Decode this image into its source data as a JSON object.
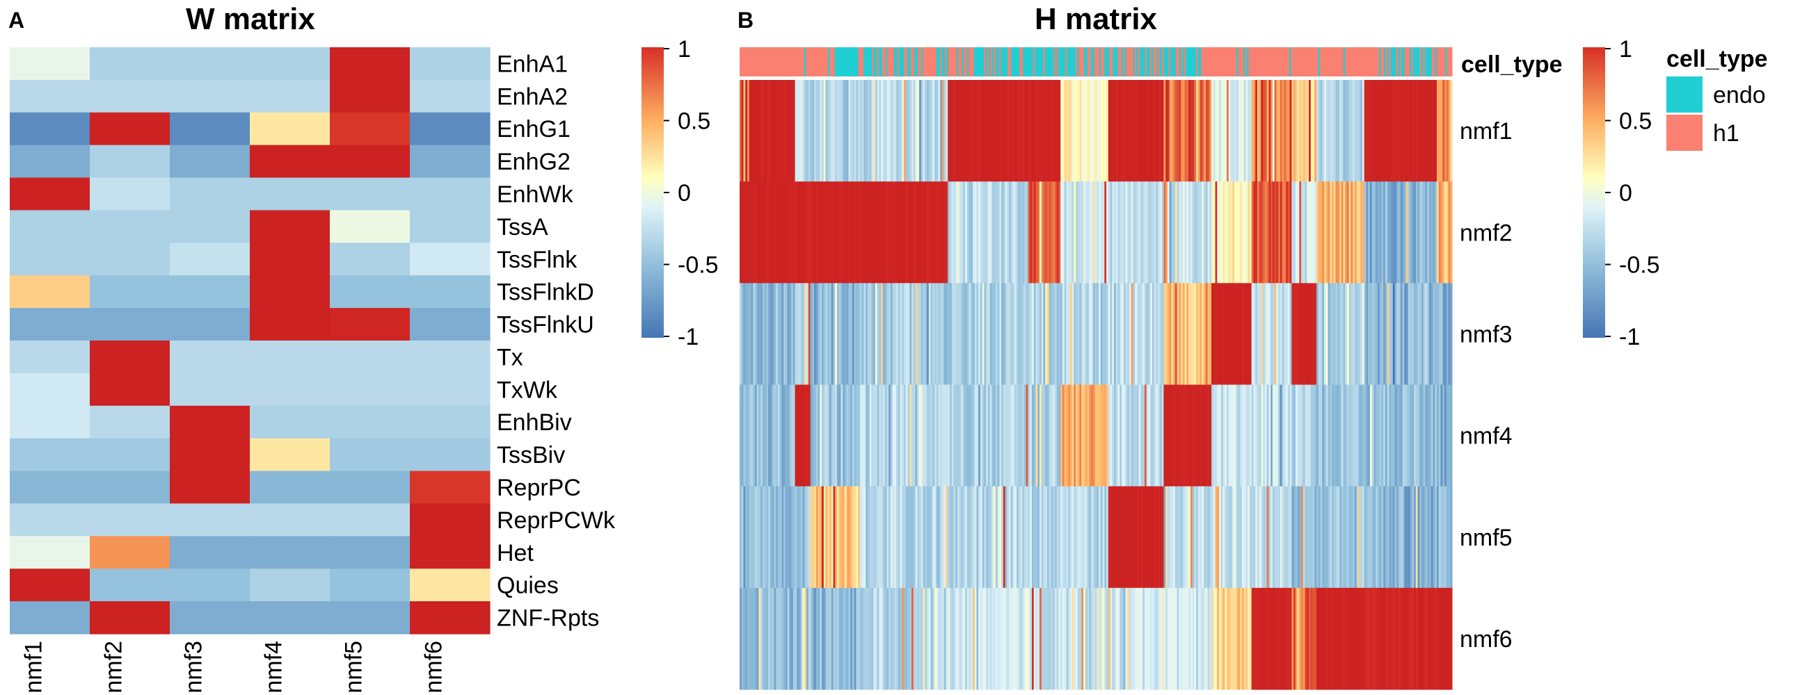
{
  "panel_a": {
    "letter": "A",
    "title": "W matrix",
    "chart_data": {
      "type": "heatmap",
      "title": "W matrix",
      "columns": [
        "nmf1",
        "nmf2",
        "nmf3",
        "nmf4",
        "nmf5",
        "nmf6"
      ],
      "rows": [
        "EnhA1",
        "EnhA2",
        "EnhG1",
        "EnhG2",
        "EnhWk",
        "TssA",
        "TssFlnk",
        "TssFlnkD",
        "TssFlnkU",
        "Tx",
        "TxWk",
        "EnhBiv",
        "TssBiv",
        "ReprPC",
        "ReprPCWk",
        "Het",
        "Quies",
        "ZNF-Rpts"
      ],
      "values": [
        [
          -0.25,
          -0.55,
          -0.55,
          -0.55,
          1.0,
          -0.55
        ],
        [
          -0.5,
          -0.5,
          -0.5,
          -0.5,
          1.0,
          -0.5
        ],
        [
          -0.9,
          1.0,
          -0.9,
          0.1,
          0.65,
          -0.9
        ],
        [
          -0.75,
          -0.55,
          -0.75,
          1.0,
          1.0,
          -0.75
        ],
        [
          1.0,
          -0.45,
          -0.55,
          -0.55,
          -0.55,
          -0.55
        ],
        [
          -0.55,
          -0.55,
          -0.55,
          1.0,
          -0.2,
          -0.55
        ],
        [
          -0.55,
          -0.55,
          -0.45,
          1.0,
          -0.55,
          -0.4
        ],
        [
          0.2,
          -0.65,
          -0.65,
          1.0,
          -0.65,
          -0.65
        ],
        [
          -0.75,
          -0.75,
          -0.75,
          1.0,
          0.9,
          -0.75
        ],
        [
          -0.5,
          1.0,
          -0.5,
          -0.5,
          -0.5,
          -0.5
        ],
        [
          -0.4,
          1.0,
          -0.5,
          -0.5,
          -0.5,
          -0.5
        ],
        [
          -0.4,
          -0.5,
          1.0,
          -0.55,
          -0.55,
          -0.55
        ],
        [
          -0.6,
          -0.6,
          1.0,
          0.1,
          -0.6,
          -0.6
        ],
        [
          -0.7,
          -0.7,
          1.0,
          -0.7,
          -0.7,
          0.65
        ],
        [
          -0.5,
          -0.5,
          -0.5,
          -0.5,
          -0.5,
          1.0
        ],
        [
          -0.25,
          0.4,
          -0.75,
          -0.75,
          -0.75,
          1.0
        ],
        [
          1.0,
          -0.65,
          -0.65,
          -0.55,
          -0.65,
          0.1
        ],
        [
          -0.75,
          1.0,
          -0.75,
          -0.75,
          -0.75,
          1.0
        ]
      ],
      "color_scale": {
        "min": -1,
        "max": 1,
        "colors": [
          "#4575b4",
          "#91bfdb",
          "#e0f3f8",
          "#ffffbf",
          "#fdae61",
          "#d73027",
          "#cc2222"
        ]
      },
      "legend": {
        "ticks": [
          "1",
          "0.5",
          "0",
          "-0.5",
          "-1"
        ],
        "tick_values": [
          1,
          0.5,
          0,
          -0.5,
          -1
        ],
        "position": "right"
      }
    }
  },
  "panel_b": {
    "letter": "B",
    "title": "H matrix",
    "annotation_label": "cell_type",
    "chart_data": {
      "type": "heatmap",
      "title": "H matrix",
      "rows": [
        "nmf1",
        "nmf2",
        "nmf3",
        "nmf4",
        "nmf5",
        "nmf6"
      ],
      "segments": [
        {
          "frac": 0.012,
          "v": [
            0.3,
            1.0,
            -0.65,
            -0.7,
            -0.7,
            -0.65
          ]
        },
        {
          "frac": 0.058,
          "v": [
            1.0,
            1.0,
            -0.65,
            -0.65,
            -0.65,
            -0.65
          ]
        },
        {
          "frac": 0.018,
          "v": [
            -0.5,
            1.0,
            -0.6,
            1.0,
            -0.6,
            -0.65
          ]
        },
        {
          "frac": 0.062,
          "v": [
            -0.55,
            1.0,
            -0.7,
            -0.6,
            0.2,
            -0.7
          ]
        },
        {
          "frac": 0.11,
          "v": [
            -0.5,
            1.0,
            -0.55,
            -0.5,
            -0.5,
            -0.5
          ]
        },
        {
          "frac": 0.1,
          "v": [
            1.0,
            -0.5,
            -0.55,
            -0.55,
            -0.5,
            -0.4
          ]
        },
        {
          "frac": 0.04,
          "v": [
            1.0,
            0.6,
            -0.55,
            -0.55,
            -0.55,
            -0.45
          ]
        },
        {
          "frac": 0.06,
          "v": [
            0.0,
            -0.4,
            -0.5,
            0.3,
            -0.5,
            -0.45
          ]
        },
        {
          "frac": 0.07,
          "v": [
            1.0,
            -0.45,
            -0.45,
            -0.45,
            1.0,
            -0.4
          ]
        },
        {
          "frac": 0.06,
          "v": [
            0.5,
            -0.4,
            0.2,
            1.0,
            -0.45,
            -0.4
          ]
        },
        {
          "frac": 0.05,
          "v": [
            -0.3,
            0.0,
            1.0,
            -0.4,
            -0.4,
            0.2
          ]
        },
        {
          "frac": 0.05,
          "v": [
            0.4,
            0.6,
            -0.45,
            -0.45,
            -0.45,
            1.0
          ]
        },
        {
          "frac": 0.03,
          "v": [
            0.2,
            -0.4,
            1.0,
            -0.5,
            -0.6,
            0.5
          ]
        },
        {
          "frac": 0.06,
          "v": [
            -0.5,
            0.3,
            -0.6,
            -0.6,
            -0.6,
            1.0
          ]
        },
        {
          "frac": 0.09,
          "v": [
            1.0,
            -0.7,
            -0.7,
            -0.65,
            -0.7,
            0.9
          ]
        },
        {
          "frac": 0.02,
          "v": [
            0.4,
            0.3,
            -0.7,
            -0.7,
            -0.7,
            1.0
          ]
        }
      ],
      "cell_type_segments": [
        {
          "frac": 0.13,
          "type": "h1"
        },
        {
          "frac": 0.06,
          "type": "endo"
        },
        {
          "frac": 0.22,
          "type": "mixed"
        },
        {
          "frac": 0.04,
          "type": "endo"
        },
        {
          "frac": 0.2,
          "type": "mixed"
        },
        {
          "frac": 0.25,
          "type": "h1"
        },
        {
          "frac": 0.1,
          "type": "mixed"
        }
      ],
      "color_scale": {
        "min": -1,
        "max": 1,
        "colors": [
          "#4575b4",
          "#91bfdb",
          "#e0f3f8",
          "#ffffbf",
          "#fdae61",
          "#d73027",
          "#cc2222"
        ]
      },
      "legend": {
        "ticks": [
          "1",
          "0.5",
          "0",
          "-0.5",
          "-1"
        ],
        "tick_values": [
          1,
          0.5,
          0,
          -0.5,
          -1
        ],
        "position": "right"
      },
      "cell_type_legend": {
        "title": "cell_type",
        "entries": [
          {
            "label": "endo",
            "color": "#20cfd4"
          },
          {
            "label": "h1",
            "color": "#fa8072"
          }
        ]
      }
    }
  }
}
